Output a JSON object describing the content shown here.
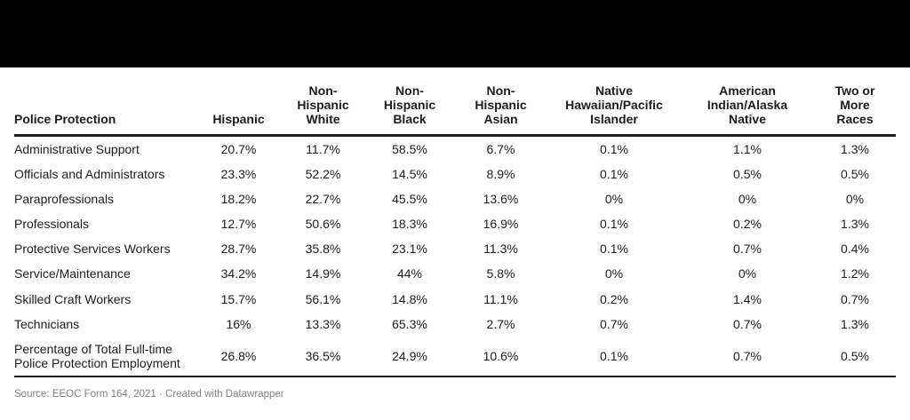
{
  "top_bar": {
    "description": "solid black redacted title band",
    "color": "#000000"
  },
  "colors": {
    "background": "#ffffff",
    "text": "#1d1d1d",
    "rule": "#1d1d1d",
    "footer_text": "#828282"
  },
  "chart_data": {
    "type": "table",
    "row_header": "Police Protection",
    "columns": [
      "Hispanic",
      "Non-Hispanic White",
      "Non-Hispanic Black",
      "Non-Hispanic Asian",
      "Native Hawaiian/Pacific Islander",
      "American Indian/Alaska Native",
      "Two or More Races"
    ],
    "value_suffix": "%",
    "rows": [
      {
        "label": "Administrative Support",
        "values": [
          20.7,
          11.7,
          58.5,
          6.7,
          0.1,
          1.1,
          1.3
        ]
      },
      {
        "label": "Officials and Administrators",
        "values": [
          23.3,
          52.2,
          14.5,
          8.9,
          0.1,
          0.5,
          0.5
        ]
      },
      {
        "label": "Paraprofessionals",
        "values": [
          18.2,
          22.7,
          45.5,
          13.6,
          0,
          0,
          0
        ]
      },
      {
        "label": "Professionals",
        "values": [
          12.7,
          50.6,
          18.3,
          16.9,
          0.1,
          0.2,
          1.3
        ]
      },
      {
        "label": "Protective Services Workers",
        "values": [
          28.7,
          35.8,
          23.1,
          11.3,
          0.1,
          0.7,
          0.4
        ]
      },
      {
        "label": "Service/Maintenance",
        "values": [
          34.2,
          14.9,
          44,
          5.8,
          0,
          0,
          1.2
        ]
      },
      {
        "label": "Skilled Craft Workers",
        "values": [
          15.7,
          56.1,
          14.8,
          11.1,
          0.2,
          1.4,
          0.7
        ]
      },
      {
        "label": "Technicians",
        "values": [
          16,
          13.3,
          65.3,
          2.7,
          0.7,
          0.7,
          1.3
        ]
      },
      {
        "label": "Percentage of Total Full-time Police Protection Employment",
        "values": [
          26.8,
          36.5,
          24.9,
          10.6,
          0.1,
          0.7,
          0.5
        ]
      }
    ]
  },
  "footer": {
    "text": "Source: EEOC Form 164, 2021 · Created with Datawrapper"
  }
}
